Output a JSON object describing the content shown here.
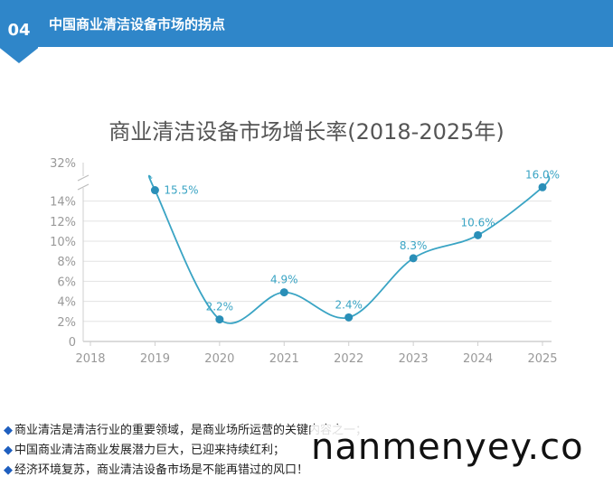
{
  "header": {
    "badge": "04",
    "title": "中国商业清洁设备市场的拐点"
  },
  "chart_data": {
    "type": "line",
    "title": "商业清洁设备市场增长率(2018-2025年)",
    "xlabel": "",
    "ylabel": "",
    "x": [
      "2018",
      "2019",
      "2020",
      "2021",
      "2022",
      "2023",
      "2024",
      "2025"
    ],
    "y_ticks": [
      "0",
      "2%",
      "4%",
      "6%",
      "8%",
      "10%",
      "12%",
      "14%",
      "32%"
    ],
    "series": [
      {
        "x": [
          "2019",
          "2020",
          "2021",
          "2022",
          "2023",
          "2024",
          "2025"
        ],
        "values": [
          15.5,
          2.2,
          4.9,
          2.4,
          8.3,
          10.6,
          16.0
        ],
        "labels": [
          "15.5%",
          "2.2%",
          "4.9%",
          "2.4%",
          "8.3%",
          "10.6%",
          "16.0%"
        ],
        "color": "#3aa4c4"
      }
    ],
    "ylim": [
      0,
      32
    ],
    "axis_break": true,
    "grid": true
  },
  "bullets": [
    "商业清洁是清洁行业的重要领域，是商业场所运营的关键内容之一；",
    "中国商业清洁商业发展潜力巨大，已迎来持续红利；",
    "经济环境复苏，商业清洁设备市场是不能再错过的风口！"
  ],
  "watermark": "nanmenyey.co",
  "colors": {
    "header": "#2f86c9",
    "line": "#3aa4c4",
    "bullet": "#1f5fbf"
  }
}
